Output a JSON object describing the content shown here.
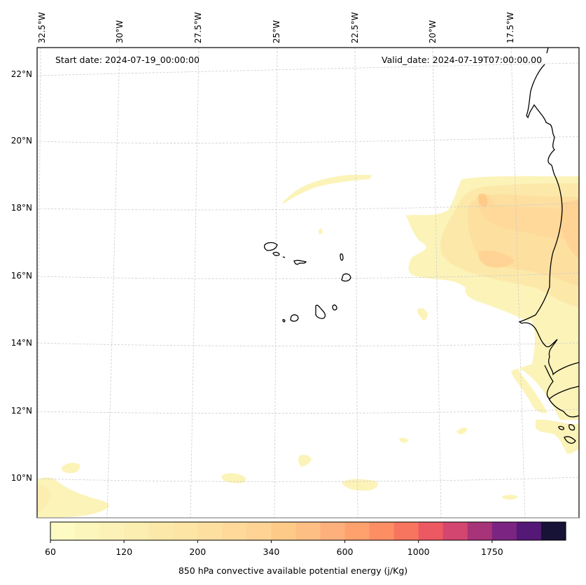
{
  "map": {
    "title_left": "Start date: 2024-07-19_00:00:00",
    "title_right": "Valid_date: 2024-07-19T07:00:00.00",
    "longitude_labels": [
      "32.5°W",
      "30°W",
      "27.5°W",
      "25°W",
      "22.5°W",
      "20°W",
      "17.5°W"
    ],
    "latitude_labels": [
      "22°N",
      "20°N",
      "18°N",
      "16°N",
      "14°N",
      "12°N",
      "10°N"
    ],
    "extent": {
      "lon_min": -32.6,
      "lon_max": -15.6,
      "lat_min": 8.9,
      "lat_max": 22.7
    },
    "variable": "850 hPa convective available potential energy",
    "field_summary": "Highest values (~200-300 j/Kg) over coastal West Africa near 16-18°N; weak (60-120 j/Kg) patches elsewhere",
    "features": [
      "Cape Verde islands",
      "West African coastline"
    ]
  },
  "colorbar": {
    "label": "850 hPa convective available potential energy (j/Kg)",
    "tick_labels": [
      "60",
      "120",
      "200",
      "340",
      "600",
      "1000",
      "1750"
    ],
    "colors": [
      "#fdfac4",
      "#fcf6bc",
      "#fcf1b6",
      "#fbeeb0",
      "#fce9a9",
      "#fde5a5",
      "#fddfa0",
      "#fed99a",
      "#fed394",
      "#fdca88",
      "#febf84",
      "#feb07c",
      "#fea16d",
      "#fd8e64",
      "#f7755e",
      "#ec5962",
      "#d2466f",
      "#a73378",
      "#7c2481",
      "#541877",
      "#171336"
    ]
  }
}
